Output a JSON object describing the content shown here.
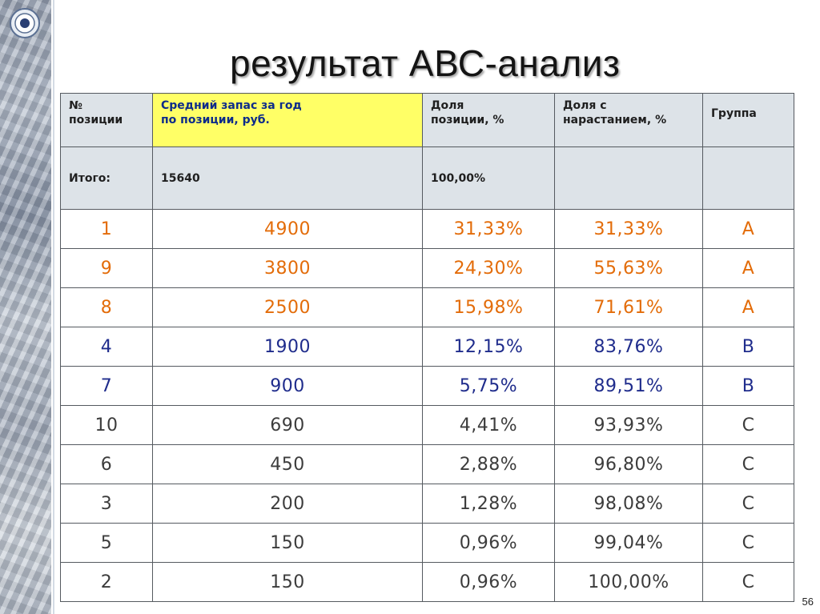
{
  "slide": {
    "title": "результат АВС-анализ",
    "page_number": "56"
  },
  "table": {
    "headers": {
      "position": "№\nпозиции",
      "avg_stock": "Средний запас за год\nпо позиции, руб.",
      "share": "Доля\nпозиции, %",
      "cumulative": "Доля с\nнарастанием, %",
      "group": "Группа"
    },
    "total": {
      "label": "Итого:",
      "stock": "15640",
      "share": "100,00%",
      "cumulative": "",
      "group": ""
    },
    "rows": [
      {
        "position": "1",
        "stock": "4900",
        "share": "31,33%",
        "cumulative": "31,33%",
        "group": "A"
      },
      {
        "position": "9",
        "stock": "3800",
        "share": "24,30%",
        "cumulative": "55,63%",
        "group": "A"
      },
      {
        "position": "8",
        "stock": "2500",
        "share": "15,98%",
        "cumulative": "71,61%",
        "group": "A"
      },
      {
        "position": "4",
        "stock": "1900",
        "share": "12,15%",
        "cumulative": "83,76%",
        "group": "B"
      },
      {
        "position": "7",
        "stock": "900",
        "share": "5,75%",
        "cumulative": "89,51%",
        "group": "B"
      },
      {
        "position": "10",
        "stock": "690",
        "share": "4,41%",
        "cumulative": "93,93%",
        "group": "C"
      },
      {
        "position": "6",
        "stock": "450",
        "share": "2,88%",
        "cumulative": "96,80%",
        "group": "C"
      },
      {
        "position": "3",
        "stock": "200",
        "share": "1,28%",
        "cumulative": "98,08%",
        "group": "C"
      },
      {
        "position": "5",
        "stock": "150",
        "share": "0,96%",
        "cumulative": "99,04%",
        "group": "C"
      },
      {
        "position": "2",
        "stock": "150",
        "share": "0,96%",
        "cumulative": "100,00%",
        "group": "C"
      }
    ]
  },
  "colors": {
    "group_A": "#e36c09",
    "group_B": "#1f2c8c",
    "group_C": "#3c3c3c",
    "header_bg": "#dde3e8",
    "highlight_header_bg": "#ffff66"
  },
  "icons": {
    "corner": "target-icon"
  }
}
